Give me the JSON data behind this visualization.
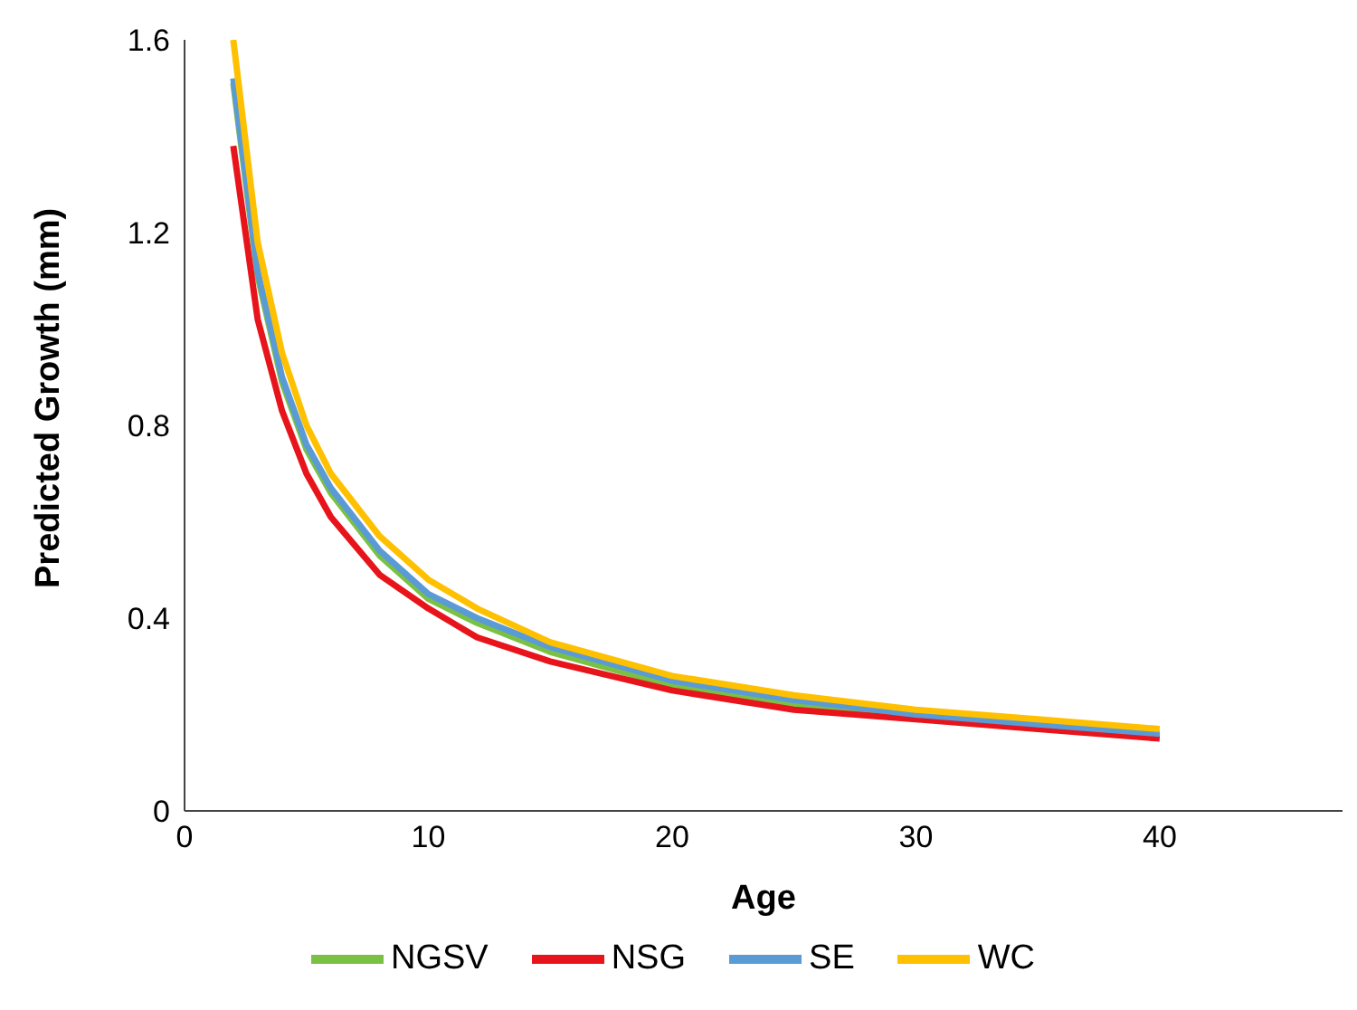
{
  "chart_data": {
    "type": "line",
    "xlabel": "Age",
    "ylabel": "Predicted Growth (mm)",
    "x": [
      2,
      3,
      4,
      5,
      6,
      8,
      10,
      12,
      15,
      20,
      25,
      30,
      35,
      40
    ],
    "series": [
      {
        "name": "NGSV",
        "color": "#7ac143",
        "values": [
          1.51,
          1.11,
          0.89,
          0.75,
          0.66,
          0.53,
          0.44,
          0.39,
          0.33,
          0.26,
          0.22,
          0.195,
          0.175,
          0.155
        ]
      },
      {
        "name": "NSG",
        "color": "#e8141b",
        "values": [
          1.38,
          1.02,
          0.83,
          0.7,
          0.61,
          0.49,
          0.42,
          0.36,
          0.31,
          0.25,
          0.21,
          0.19,
          0.17,
          0.15
        ]
      },
      {
        "name": "SE",
        "color": "#5b9bd5",
        "values": [
          1.52,
          1.12,
          0.9,
          0.76,
          0.67,
          0.54,
          0.45,
          0.4,
          0.34,
          0.27,
          0.23,
          0.2,
          0.18,
          0.16
        ]
      },
      {
        "name": "WC",
        "color": "#ffc000",
        "values": [
          1.6,
          1.18,
          0.95,
          0.8,
          0.7,
          0.57,
          0.48,
          0.42,
          0.35,
          0.28,
          0.24,
          0.21,
          0.19,
          0.17
        ]
      }
    ],
    "xlim": [
      0,
      47.5
    ],
    "xticks": [
      0,
      10,
      20,
      30,
      40
    ],
    "ylim": [
      0,
      1.6
    ],
    "yticks": [
      0,
      0.4,
      0.8,
      1.2,
      1.6
    ],
    "grid": false,
    "legend": "bottom",
    "marker": "none",
    "line_style": "solid"
  }
}
